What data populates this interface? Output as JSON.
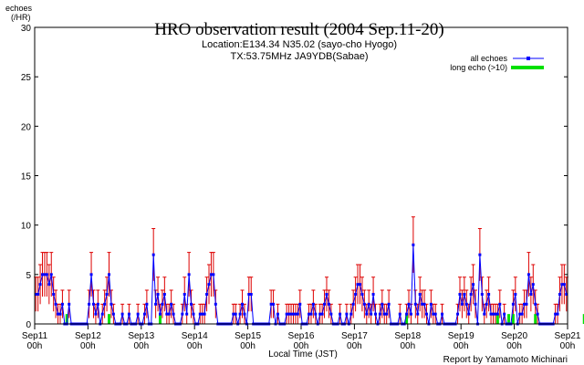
{
  "header": {
    "title": "HRO observation result (2004 Sep.11-20)",
    "location": "Location:E134.34 N35.02 (sayo-cho Hyogo)",
    "tx": "TX:53.75MHz JA9YDB(Sabae)"
  },
  "footer": {
    "report": "Report by Yamamoto Michinari"
  },
  "colors": {
    "all_echoes": "#0000ff",
    "long_echo": "#00e000",
    "error_bar": "#dd0000",
    "axis": "#000000"
  },
  "chart_data": {
    "type": "line",
    "title": "HRO observation result (2004 Sep.11-20)",
    "ylabel": "echoes\n(/HR)",
    "ylabel_lines": [
      "echoes",
      "(/HR)"
    ],
    "xlabel": "Local Time (JST)",
    "ylim": [
      0,
      30
    ],
    "yticks": [
      0,
      5,
      10,
      15,
      20,
      25,
      30
    ],
    "xlim_hours": [
      0,
      240
    ],
    "x_ticks": [
      {
        "date": "Sep11",
        "time": "00h"
      },
      {
        "date": "Sep12",
        "time": "00h"
      },
      {
        "date": "Sep13",
        "time": "00h"
      },
      {
        "date": "Sep14",
        "time": "00h"
      },
      {
        "date": "Sep15",
        "time": "00h"
      },
      {
        "date": "Sep16",
        "time": "00h"
      },
      {
        "date": "Sep17",
        "time": "00h"
      },
      {
        "date": "Sep18",
        "time": "00h"
      },
      {
        "date": "Sep19",
        "time": "00h"
      },
      {
        "date": "Sep20",
        "time": "00h"
      },
      {
        "date": "Sep21",
        "time": "00h"
      }
    ],
    "grid": false,
    "legend_position": "top-right",
    "series": [
      {
        "name": "all echoes",
        "color": "#0000ff",
        "values": [
          3,
          3,
          4,
          5,
          5,
          5,
          4,
          5,
          3,
          2,
          1,
          1,
          2,
          0,
          0,
          2,
          0,
          0,
          0,
          0,
          0,
          0,
          0,
          0,
          2,
          5,
          2,
          1,
          2,
          0,
          1,
          2,
          3,
          5,
          2,
          1,
          0,
          0,
          0,
          1,
          0,
          0,
          1,
          0,
          0,
          0,
          1,
          0,
          0,
          1,
          2,
          0,
          0,
          7,
          2,
          3,
          1,
          2,
          3,
          1,
          1,
          2,
          1,
          0,
          0,
          0,
          1,
          3,
          1,
          5,
          2,
          1,
          0,
          0,
          1,
          1,
          1,
          3,
          4,
          5,
          5,
          2,
          0,
          0,
          0,
          0,
          0,
          0,
          0,
          1,
          1,
          0,
          1,
          2,
          1,
          0,
          3,
          3,
          0,
          0,
          0,
          0,
          0,
          0,
          0,
          0,
          2,
          2,
          0,
          1,
          0,
          0,
          0,
          1,
          1,
          1,
          1,
          1,
          1,
          2,
          0,
          0,
          0,
          1,
          1,
          2,
          1,
          0,
          1,
          1,
          2,
          3,
          2,
          1,
          0,
          0,
          0,
          1,
          0,
          0,
          1,
          0,
          1,
          2,
          3,
          4,
          4,
          3,
          2,
          1,
          2,
          1,
          3,
          1,
          0,
          1,
          2,
          1,
          1,
          2,
          0,
          0,
          0,
          0,
          1,
          0,
          0,
          1,
          2,
          1,
          8,
          2,
          1,
          3,
          2,
          2,
          1,
          0,
          2,
          1,
          1,
          0,
          0,
          1,
          0,
          0,
          0,
          0,
          0,
          0,
          1,
          3,
          2,
          3,
          2,
          1,
          3,
          4,
          2,
          0,
          7,
          3,
          1,
          2,
          3,
          1,
          1,
          1,
          1,
          2,
          0,
          1,
          0,
          0,
          0,
          2,
          3,
          0,
          1,
          1,
          2,
          2,
          5,
          3,
          4,
          2,
          1,
          0,
          0,
          0,
          0,
          0,
          0,
          0,
          1,
          1,
          3,
          4,
          4,
          3
        ]
      },
      {
        "name": "long echo (>10)",
        "color": "#00e000",
        "values": [
          0,
          0,
          0,
          0,
          0,
          0,
          0,
          0,
          0,
          0,
          0,
          0,
          0,
          0,
          1,
          0,
          0,
          0,
          0,
          0,
          0,
          0,
          0,
          0,
          0,
          0,
          0,
          0,
          0,
          0,
          0,
          0,
          0,
          1,
          0,
          0,
          0,
          0,
          0,
          0,
          0,
          0,
          0,
          0,
          0,
          0,
          0,
          0,
          0,
          0,
          0,
          0,
          0,
          0,
          0,
          0,
          1,
          0,
          0,
          0,
          0,
          0,
          0,
          0,
          0,
          0,
          0,
          0,
          0,
          0,
          0,
          0,
          0,
          0,
          0,
          0,
          0,
          0,
          0,
          0,
          0,
          0,
          0,
          0,
          0,
          0,
          0,
          0,
          0,
          0,
          0,
          0,
          0,
          0,
          0,
          0,
          0,
          0,
          0,
          0,
          0,
          0,
          0,
          0,
          0,
          0,
          0,
          0,
          0,
          0,
          0,
          0,
          0,
          0,
          0,
          0,
          0,
          0,
          0,
          0,
          0,
          0,
          0,
          0,
          0,
          0,
          0,
          0,
          0,
          0,
          0,
          0,
          0,
          0,
          0,
          0,
          0,
          0,
          0,
          0,
          0,
          0,
          0,
          0,
          0,
          0,
          0,
          0,
          0,
          0,
          0,
          0,
          0,
          0,
          0,
          0,
          0,
          0,
          0,
          0,
          0,
          0,
          0,
          0,
          0,
          0,
          0,
          1,
          0,
          0,
          0,
          0,
          0,
          0,
          0,
          0,
          0,
          0,
          0,
          0,
          0,
          0,
          0,
          0,
          0,
          0,
          0,
          0,
          0,
          0,
          0,
          0,
          0,
          0,
          0,
          0,
          0,
          0,
          0,
          0,
          0,
          0,
          0,
          0,
          0,
          0,
          0,
          0,
          1,
          0,
          0,
          0,
          0,
          1,
          0,
          1,
          0,
          0,
          0,
          0,
          0,
          0,
          0,
          0,
          0,
          1,
          0,
          0,
          0,
          0,
          0,
          0,
          0,
          0,
          0,
          0,
          0,
          0,
          0,
          0,
          0,
          0,
          0,
          0,
          0,
          0,
          0,
          1
        ]
      }
    ]
  }
}
